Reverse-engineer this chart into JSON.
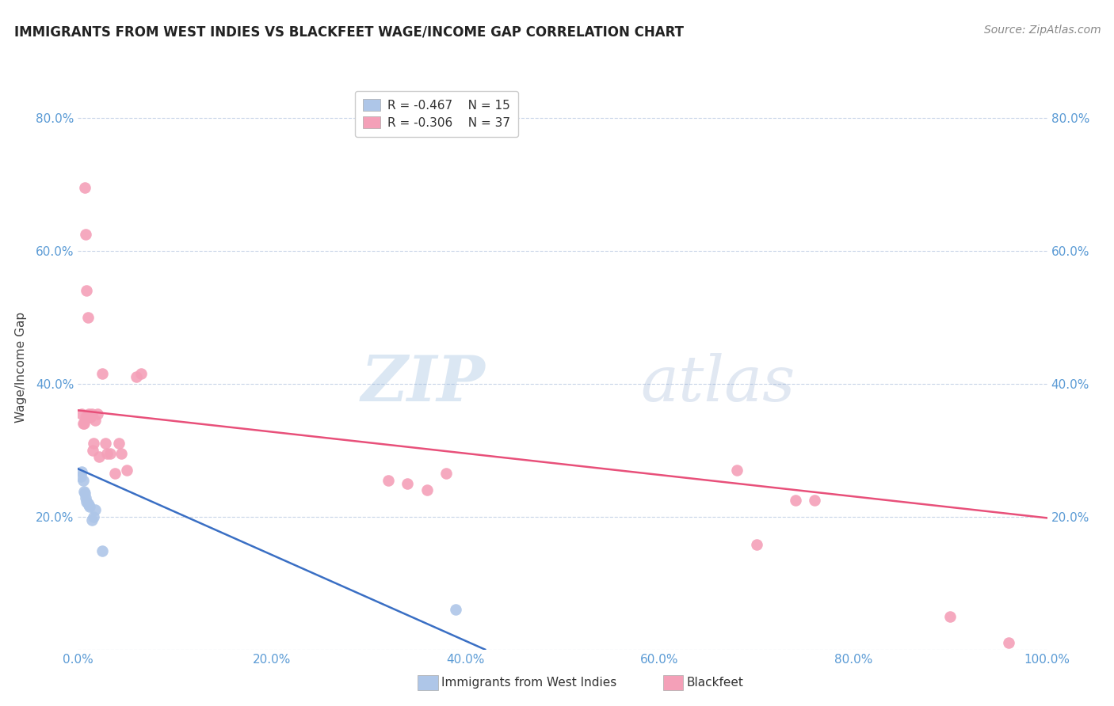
{
  "title": "IMMIGRANTS FROM WEST INDIES VS BLACKFEET WAGE/INCOME GAP CORRELATION CHART",
  "source": "Source: ZipAtlas.com",
  "ylabel": "Wage/Income Gap",
  "xlim": [
    0.0,
    1.0
  ],
  "ylim": [
    0.0,
    0.85
  ],
  "xticks": [
    0.0,
    0.2,
    0.4,
    0.6,
    0.8,
    1.0
  ],
  "yticks": [
    0.0,
    0.2,
    0.4,
    0.6,
    0.8
  ],
  "ytick_labels": [
    "",
    "20.0%",
    "40.0%",
    "60.0%",
    "80.0%"
  ],
  "xtick_labels": [
    "0.0%",
    "20.0%",
    "40.0%",
    "60.0%",
    "80.0%",
    "100.0%"
  ],
  "legend_blue_label": "Immigrants from West Indies",
  "legend_pink_label": "Blackfeet",
  "R_blue": "-0.467",
  "N_blue": "15",
  "R_pink": "-0.306",
  "N_pink": "37",
  "blue_color": "#aec6e8",
  "pink_color": "#f4a0b8",
  "blue_line_color": "#3a6fc4",
  "pink_line_color": "#e8507a",
  "axis_tick_color": "#5b9bd5",
  "blue_scatter_x": [
    0.003,
    0.004,
    0.005,
    0.006,
    0.007,
    0.008,
    0.009,
    0.01,
    0.011,
    0.012,
    0.014,
    0.016,
    0.018,
    0.025,
    0.39
  ],
  "blue_scatter_y": [
    0.26,
    0.268,
    0.255,
    0.238,
    0.235,
    0.228,
    0.222,
    0.22,
    0.218,
    0.215,
    0.195,
    0.2,
    0.21,
    0.148,
    0.06
  ],
  "pink_scatter_x": [
    0.004,
    0.005,
    0.006,
    0.007,
    0.008,
    0.008,
    0.009,
    0.01,
    0.011,
    0.012,
    0.013,
    0.014,
    0.015,
    0.016,
    0.018,
    0.02,
    0.022,
    0.025,
    0.028,
    0.03,
    0.033,
    0.038,
    0.042,
    0.045,
    0.05,
    0.06,
    0.065,
    0.32,
    0.34,
    0.36,
    0.38,
    0.68,
    0.7,
    0.74,
    0.76,
    0.9,
    0.96
  ],
  "pink_scatter_y": [
    0.355,
    0.34,
    0.34,
    0.695,
    0.625,
    0.35,
    0.54,
    0.5,
    0.355,
    0.35,
    0.35,
    0.355,
    0.3,
    0.31,
    0.345,
    0.355,
    0.29,
    0.415,
    0.31,
    0.295,
    0.295,
    0.265,
    0.31,
    0.295,
    0.27,
    0.41,
    0.415,
    0.255,
    0.25,
    0.24,
    0.265,
    0.27,
    0.158,
    0.225,
    0.225,
    0.05,
    0.01
  ],
  "blue_trendline_x": [
    0.0,
    0.42
  ],
  "blue_trendline_y": [
    0.272,
    0.0
  ],
  "pink_trendline_x": [
    0.0,
    1.0
  ],
  "pink_trendline_y": [
    0.36,
    0.198
  ],
  "background_color": "#ffffff",
  "grid_color": "#c8d4e8",
  "plot_bg_color": "#ffffff"
}
